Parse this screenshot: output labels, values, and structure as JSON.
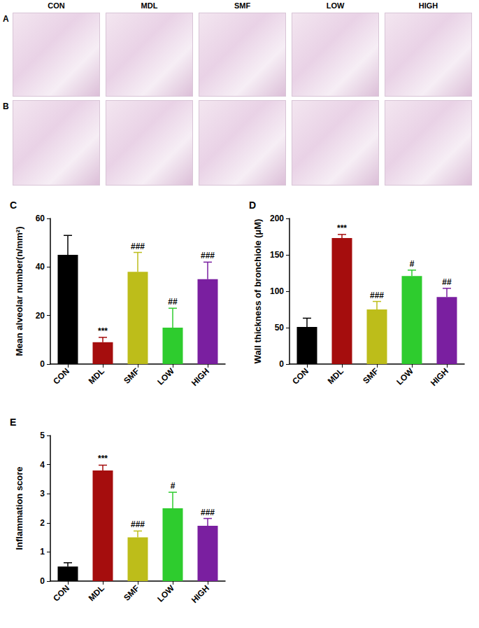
{
  "figure": {
    "row_labels": [
      "A",
      "B"
    ],
    "group_labels": [
      "CON",
      "MDL",
      "SMF",
      "LOW",
      "HIGH"
    ]
  },
  "chart_data": [
    {
      "panel": "C",
      "type": "bar",
      "y_label": "Mean alveolar number(n/mm²)",
      "categories": [
        "CON",
        "MDL",
        "SMF",
        "LOW",
        "HIGH"
      ],
      "values": [
        45,
        9,
        38,
        15,
        35
      ],
      "errors": [
        8,
        2,
        8,
        8,
        7
      ],
      "annotations": [
        null,
        "***",
        "###",
        "##",
        "###"
      ],
      "colors": [
        "#000000",
        "#a50d0d",
        "#bdbd1a",
        "#2ecc2e",
        "#7a1fa0"
      ],
      "ylim": [
        0,
        60
      ],
      "yticks": [
        0,
        20,
        40,
        60
      ],
      "grid": false
    },
    {
      "panel": "D",
      "type": "bar",
      "y_label": "Wall thickness of bronchiole (μM)",
      "categories": [
        "CON",
        "MDL",
        "SMF",
        "LOW",
        "HIGH"
      ],
      "values": [
        51,
        173,
        75,
        121,
        92
      ],
      "errors": [
        12,
        5,
        11,
        8,
        12
      ],
      "annotations": [
        null,
        "***",
        "###",
        "#",
        "##"
      ],
      "colors": [
        "#000000",
        "#a50d0d",
        "#bdbd1a",
        "#2ecc2e",
        "#7a1fa0"
      ],
      "ylim": [
        0,
        200
      ],
      "yticks": [
        0,
        50,
        100,
        150,
        200
      ],
      "grid": false
    },
    {
      "panel": "E",
      "type": "bar",
      "y_label": "Inflammation score",
      "categories": [
        "CON",
        "MDL",
        "SMF",
        "LOW",
        "HIGH"
      ],
      "values": [
        0.5,
        3.8,
        1.5,
        2.5,
        1.9
      ],
      "errors": [
        0.13,
        0.18,
        0.22,
        0.55,
        0.25
      ],
      "annotations": [
        null,
        "***",
        "###",
        "#",
        "###"
      ],
      "colors": [
        "#000000",
        "#a50d0d",
        "#bdbd1a",
        "#2ecc2e",
        "#7a1fa0"
      ],
      "ylim": [
        0,
        5
      ],
      "yticks": [
        0,
        1,
        2,
        3,
        4,
        5
      ],
      "grid": false
    }
  ]
}
